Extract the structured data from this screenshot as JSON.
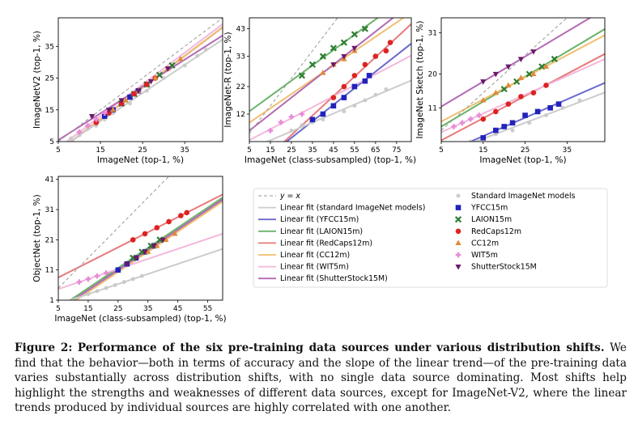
{
  "legend": {
    "lines": [
      {
        "label": "y = x",
        "color": "#999999",
        "dash": true
      },
      {
        "label": "Linear fit (standard ImageNet models)",
        "color": "#cccccc"
      },
      {
        "label": "Linear fit (YFCC15m)",
        "color": "#6a6acd"
      },
      {
        "label": "Linear fit (LAION15m)",
        "color": "#6bb36b"
      },
      {
        "label": "Linear fit (RedCaps12m)",
        "color": "#e87a7a"
      },
      {
        "label": "Linear fit (CC12m)",
        "color": "#f0bf6f"
      },
      {
        "label": "Linear fit (WIT5m)",
        "color": "#f2b8dc"
      },
      {
        "label": "Linear fit (ShutterStock15M)",
        "color": "#b36ab3"
      }
    ],
    "markers": [
      {
        "label": "Standard ImageNet models",
        "color": "#c8c8c8",
        "shape": "circle-small"
      },
      {
        "label": "YFCC15m",
        "color": "#2222bb",
        "shape": "square"
      },
      {
        "label": "LAION15m",
        "color": "#2e7d32",
        "shape": "x"
      },
      {
        "label": "RedCaps12m",
        "color": "#dd2222",
        "shape": "circle"
      },
      {
        "label": "CC12m",
        "color": "#e08a3a",
        "shape": "triangle-up"
      },
      {
        "label": "WIT5m",
        "color": "#e88ad8",
        "shape": "plus"
      },
      {
        "label": "ShutterStock15M",
        "color": "#6a1a6a",
        "shape": "triangle-down"
      }
    ]
  },
  "chart_data": [
    {
      "type": "scatter",
      "name": "imagenetv2",
      "xlabel": "ImageNet (top-1, %)",
      "ylabel": "ImageNetV2 (top-1, %)",
      "xticks": [
        "5",
        "15",
        "25",
        "35"
      ],
      "yticks": [
        "5",
        "15",
        "25",
        "35"
      ],
      "xtick_values": [
        5,
        15,
        25,
        35
      ],
      "ytick_values": [
        5,
        15,
        25,
        35
      ],
      "xlim": [
        5,
        44
      ],
      "ylim": [
        5,
        44
      ],
      "series": [
        {
          "name": "YFCC15m",
          "points": [
            [
              16,
              13
            ],
            [
              18,
              15
            ],
            [
              20,
              17
            ],
            [
              22,
              19
            ],
            [
              24,
              21
            ],
            [
              26,
              23
            ]
          ]
        },
        {
          "name": "LAION15m",
          "points": [
            [
              20,
              17
            ],
            [
              23,
              20
            ],
            [
              26,
              23
            ],
            [
              29,
              26
            ],
            [
              32,
              29
            ]
          ]
        },
        {
          "name": "RedCaps12m",
          "points": [
            [
              14,
              11
            ],
            [
              17,
              14
            ],
            [
              20,
              17
            ],
            [
              23,
              20
            ],
            [
              26,
              23
            ],
            [
              28,
              25
            ]
          ]
        },
        {
          "name": "CC12m",
          "points": [
            [
              18,
              15
            ],
            [
              21,
              18
            ],
            [
              24,
              21
            ],
            [
              28,
              25
            ],
            [
              31,
              28
            ],
            [
              34,
              31
            ]
          ]
        },
        {
          "name": "WIT5m",
          "points": [
            [
              10,
              8
            ],
            [
              12,
              10
            ],
            [
              14,
              12
            ],
            [
              16,
              14
            ]
          ]
        },
        {
          "name": "ShutterStock15M",
          "points": [
            [
              13,
              13
            ],
            [
              17,
              15
            ],
            [
              20,
              18
            ],
            [
              24,
              21
            ],
            [
              27,
              24
            ],
            [
              31,
              28
            ]
          ]
        },
        {
          "name": "Standard ImageNet models",
          "points": [
            [
              8,
              6
            ],
            [
              10,
              7
            ],
            [
              12,
              9
            ],
            [
              14,
              10
            ],
            [
              16,
              12
            ],
            [
              18,
              14
            ],
            [
              22,
              17
            ],
            [
              26,
              21
            ],
            [
              30,
              25
            ],
            [
              35,
              29
            ],
            [
              38,
              32
            ],
            [
              40,
              34
            ]
          ]
        }
      ]
    },
    {
      "type": "scatter",
      "name": "imagenetr",
      "xlabel": "ImageNet (class-subsampled) (top-1, %)",
      "ylabel": "ImageNet-R (top-1, %)",
      "xticks": [
        "5",
        "15",
        "25",
        "35",
        "45",
        "55",
        "65",
        "75"
      ],
      "yticks": [
        "12",
        "22",
        "33",
        "43"
      ],
      "xtick_values": [
        5,
        15,
        25,
        35,
        45,
        55,
        65,
        75
      ],
      "ytick_values": [
        12,
        22,
        33,
        43
      ],
      "xlim": [
        5,
        82
      ],
      "ylim": [
        2,
        47
      ],
      "series": [
        {
          "name": "YFCC15m",
          "points": [
            [
              35,
              10
            ],
            [
              40,
              12
            ],
            [
              45,
              15
            ],
            [
              50,
              18
            ],
            [
              55,
              22
            ],
            [
              60,
              24
            ],
            [
              62,
              26
            ]
          ]
        },
        {
          "name": "LAION15m",
          "points": [
            [
              30,
              26
            ],
            [
              35,
              30
            ],
            [
              40,
              33
            ],
            [
              45,
              36
            ],
            [
              50,
              38
            ],
            [
              55,
              41
            ],
            [
              60,
              43
            ]
          ]
        },
        {
          "name": "RedCaps12m",
          "points": [
            [
              45,
              18
            ],
            [
              50,
              22
            ],
            [
              55,
              26
            ],
            [
              60,
              30
            ],
            [
              65,
              33
            ],
            [
              70,
              35
            ],
            [
              72,
              38
            ]
          ]
        },
        {
          "name": "CC12m",
          "points": [
            [
              40,
              27
            ],
            [
              45,
              30
            ],
            [
              50,
              32
            ],
            [
              55,
              35
            ]
          ]
        },
        {
          "name": "WIT5m",
          "points": [
            [
              15,
              6
            ],
            [
              20,
              9
            ],
            [
              25,
              11
            ],
            [
              30,
              12
            ]
          ]
        },
        {
          "name": "ShutterStock15M",
          "points": [
            [
              45,
              30
            ],
            [
              50,
              33
            ],
            [
              55,
              36
            ]
          ]
        },
        {
          "name": "Standard ImageNet models",
          "points": [
            [
              25,
              6
            ],
            [
              30,
              8
            ],
            [
              35,
              9
            ],
            [
              40,
              10
            ],
            [
              50,
              13
            ],
            [
              55,
              15
            ],
            [
              60,
              17
            ],
            [
              65,
              19
            ],
            [
              70,
              21
            ]
          ]
        }
      ]
    },
    {
      "type": "scatter",
      "name": "imagenetsketch",
      "xlabel": "ImageNet (top-1, %)",
      "ylabel": "ImageNet Sketch (top-1, %)",
      "xticks": [
        "5",
        "15",
        "25",
        "35"
      ],
      "yticks": [
        "11",
        "20",
        "31"
      ],
      "xtick_values": [
        5,
        15,
        25,
        35
      ],
      "ytick_values": [
        11,
        20,
        31
      ],
      "xlim": [
        5,
        44
      ],
      "ylim": [
        2,
        35
      ],
      "series": [
        {
          "name": "YFCC15m",
          "points": [
            [
              15,
              3
            ],
            [
              18,
              5
            ],
            [
              20,
              6
            ],
            [
              22,
              7
            ],
            [
              25,
              9
            ],
            [
              28,
              10
            ],
            [
              31,
              11
            ],
            [
              33,
              12
            ]
          ]
        },
        {
          "name": "LAION15m",
          "points": [
            [
              20,
              16
            ],
            [
              23,
              18
            ],
            [
              26,
              20
            ],
            [
              29,
              22
            ],
            [
              32,
              24
            ]
          ]
        },
        {
          "name": "RedCaps12m",
          "points": [
            [
              15,
              8
            ],
            [
              18,
              10
            ],
            [
              21,
              12
            ],
            [
              24,
              14
            ],
            [
              27,
              15
            ],
            [
              30,
              17
            ]
          ]
        },
        {
          "name": "CC12m",
          "points": [
            [
              15,
              13
            ],
            [
              18,
              15
            ],
            [
              21,
              17
            ],
            [
              24,
              19
            ],
            [
              27,
              20
            ],
            [
              30,
              22
            ]
          ]
        },
        {
          "name": "WIT5m",
          "points": [
            [
              8,
              6
            ],
            [
              10,
              7
            ],
            [
              12,
              8
            ],
            [
              14,
              9
            ]
          ]
        },
        {
          "name": "ShutterStock15M",
          "points": [
            [
              15,
              18
            ],
            [
              18,
              20
            ],
            [
              21,
              22
            ],
            [
              24,
              24
            ],
            [
              27,
              26
            ]
          ]
        },
        {
          "name": "Standard ImageNet models",
          "points": [
            [
              12,
              2
            ],
            [
              15,
              3
            ],
            [
              18,
              4
            ],
            [
              22,
              5
            ],
            [
              26,
              7
            ],
            [
              30,
              9
            ],
            [
              34,
              11
            ],
            [
              38,
              13
            ]
          ]
        }
      ]
    },
    {
      "type": "scatter",
      "name": "objectnet",
      "xlabel": "ImageNet (class-subsampled) (top-1, %)",
      "ylabel": "ObjectNet (top-1, %)",
      "xticks": [
        "5",
        "15",
        "25",
        "35",
        "45",
        "55"
      ],
      "yticks": [
        "1",
        "11",
        "21",
        "31",
        "41"
      ],
      "xtick_values": [
        5,
        15,
        25,
        35,
        45,
        55
      ],
      "ytick_values": [
        1,
        11,
        21,
        31,
        41
      ],
      "xlim": [
        5,
        60
      ],
      "ylim": [
        1,
        42
      ],
      "series": [
        {
          "name": "YFCC15m",
          "points": [
            [
              25,
              11
            ],
            [
              28,
              13
            ],
            [
              31,
              15
            ],
            [
              34,
              17
            ],
            [
              37,
              19
            ]
          ]
        },
        {
          "name": "LAION15m",
          "points": [
            [
              30,
              15
            ],
            [
              33,
              17
            ],
            [
              36,
              19
            ],
            [
              39,
              21
            ]
          ]
        },
        {
          "name": "RedCaps12m",
          "points": [
            [
              30,
              21
            ],
            [
              34,
              23
            ],
            [
              38,
              25
            ],
            [
              42,
              27
            ],
            [
              46,
              29
            ],
            [
              48,
              30
            ]
          ]
        },
        {
          "name": "CC12m",
          "points": [
            [
              35,
              17
            ],
            [
              38,
              19
            ],
            [
              41,
              21
            ],
            [
              44,
              23
            ]
          ]
        },
        {
          "name": "WIT5m",
          "points": [
            [
              12,
              7
            ],
            [
              15,
              8
            ],
            [
              18,
              9
            ],
            [
              21,
              10
            ]
          ]
        },
        {
          "name": "ShutterStock15M",
          "points": [
            [
              28,
              13
            ],
            [
              31,
              15
            ],
            [
              34,
              17
            ],
            [
              37,
              19
            ],
            [
              40,
              21
            ]
          ]
        },
        {
          "name": "Standard ImageNet models",
          "points": [
            [
              15,
              3
            ],
            [
              18,
              4
            ],
            [
              21,
              5
            ],
            [
              24,
              6
            ],
            [
              27,
              7
            ],
            [
              30,
              8
            ],
            [
              33,
              9
            ]
          ]
        }
      ]
    }
  ],
  "caption": {
    "label": "Figure 2:",
    "title": "Performance of the six pre-training data sources under various distribution shifts.",
    "body": "We find that the behavior—both in terms of accuracy and the slope of the linear trend—of the pre-training data varies substantially across distribution shifts, with no single data source dominating. Most shifts help highlight the strengths and weaknesses of different data sources, except for ImageNet-V2, where the linear trends produced by individual sources are highly correlated with one another."
  }
}
